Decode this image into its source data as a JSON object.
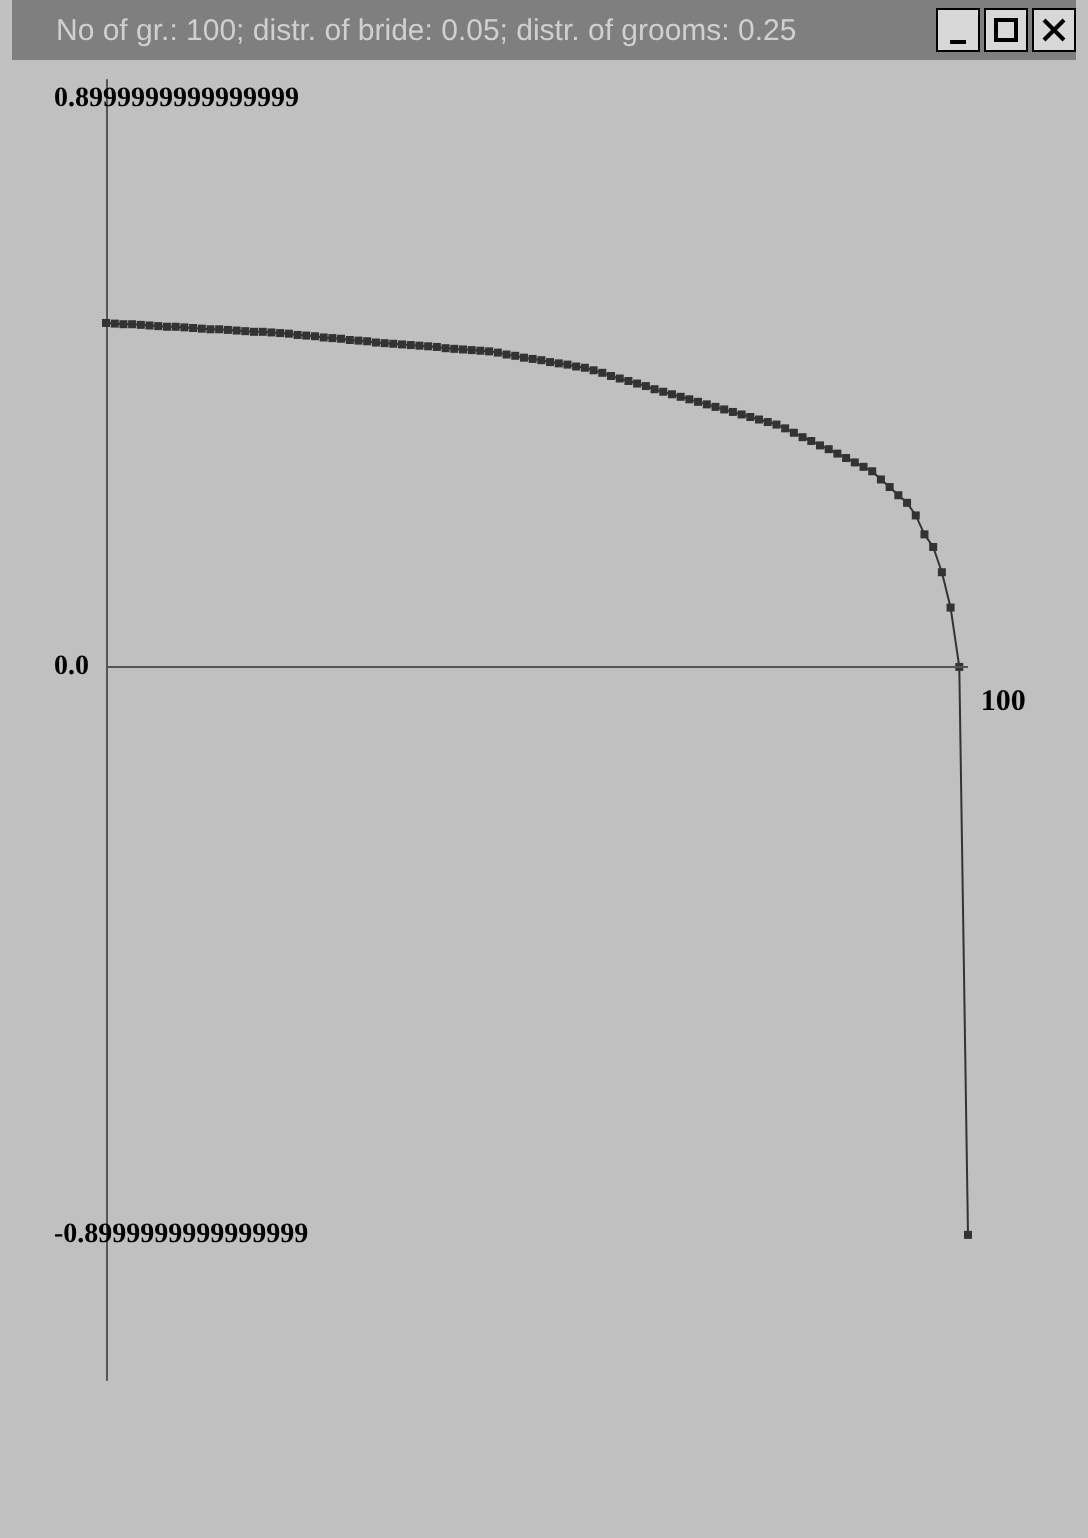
{
  "chart_data": {
    "type": "line",
    "title": "No of gr.: 100; distr. of bride: 0.05; distr. of grooms: 0.25",
    "categories": [
      null,
      null,
      null,
      null,
      null,
      null,
      null,
      null,
      null,
      null,
      null,
      null,
      null,
      null,
      null,
      null,
      null,
      null,
      null,
      null,
      null,
      null,
      null,
      null,
      null,
      null,
      null,
      null,
      null,
      null,
      null,
      null,
      null,
      null,
      null,
      null,
      null,
      null,
      null,
      null,
      null,
      null,
      null,
      null,
      null,
      null,
      null,
      null,
      null,
      null,
      null,
      null,
      null,
      null,
      null,
      null,
      null,
      null,
      null,
      null,
      null,
      null,
      null,
      null,
      null,
      null,
      null,
      null,
      null,
      null,
      null,
      null,
      null,
      null,
      null,
      null,
      null,
      null,
      null,
      null,
      null,
      null,
      null,
      null,
      null,
      null,
      null,
      null,
      null,
      null,
      null,
      null,
      null,
      null,
      null,
      null,
      null,
      null,
      null,
      null
    ],
    "series": [
      {
        "color": "#333333",
        "values": [
          0.545,
          0.544,
          0.543,
          0.543,
          0.542,
          0.541,
          0.54,
          0.539,
          0.539,
          0.538,
          0.537,
          0.536,
          0.535,
          0.535,
          0.534,
          0.533,
          0.532,
          0.531,
          0.531,
          0.53,
          0.529,
          0.528,
          0.526,
          0.525,
          0.524,
          0.522,
          0.521,
          0.52,
          0.518,
          0.517,
          0.516,
          0.514,
          0.513,
          0.512,
          0.511,
          0.51,
          0.509,
          0.508,
          0.507,
          0.505,
          0.504,
          0.503,
          0.502,
          0.501,
          0.5,
          0.498,
          0.495,
          0.493,
          0.49,
          0.488,
          0.486,
          0.483,
          0.481,
          0.479,
          0.476,
          0.474,
          0.47,
          0.466,
          0.461,
          0.457,
          0.453,
          0.449,
          0.445,
          0.44,
          0.436,
          0.432,
          0.428,
          0.424,
          0.42,
          0.416,
          0.412,
          0.408,
          0.404,
          0.4,
          0.396,
          0.392,
          0.388,
          0.384,
          0.378,
          0.371,
          0.364,
          0.358,
          0.351,
          0.345,
          0.338,
          0.331,
          0.324,
          0.317,
          0.31,
          0.297,
          0.285,
          0.272,
          0.26,
          0.24,
          0.21,
          0.19,
          0.15,
          0.094,
          0.0,
          -0.9
        ]
      }
    ],
    "ylim": [
      -1.13,
      0.93
    ],
    "yticks": [
      {
        "value": 0.8999999999999999,
        "label": "0.8999999999999999"
      },
      {
        "value": 0,
        "label": "0.0"
      },
      {
        "value": -0.8999999999999999,
        "label": "-0.8999999999999999"
      }
    ],
    "annotations": [
      "100"
    ],
    "ref_lines": [
      {
        "axis": "y",
        "value": 0,
        "color": "#555555"
      }
    ],
    "marker": "square",
    "line_style": "solid",
    "grid": false
  }
}
